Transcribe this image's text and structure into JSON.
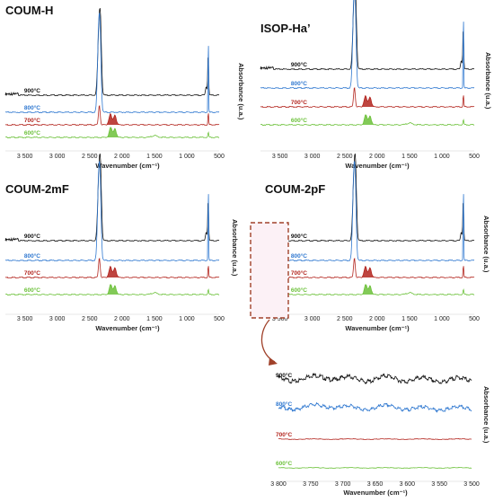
{
  "colors": {
    "900": "#111111",
    "800": "#2f78d0",
    "700": "#b3251e",
    "600": "#6cc13a",
    "callout": "#a0412a"
  },
  "chart_data": [
    {
      "type": "line",
      "title": "COUM-H",
      "xlabel": "Wavenumber (cm⁻¹)",
      "ylabel": "Absorbance (u.a.)",
      "xlim": [
        3800,
        500
      ],
      "xticks": [
        "3 500",
        "3 000",
        "2 500",
        "2 000",
        "1 500",
        "1 000",
        "500"
      ],
      "xtick_values": [
        3500,
        3000,
        2500,
        2000,
        1500,
        1000,
        500
      ],
      "series": [
        {
          "name": "900°C",
          "key": "900"
        },
        {
          "name": "800°C",
          "key": "800"
        },
        {
          "name": "700°C",
          "key": "700"
        },
        {
          "name": "600°C",
          "key": "600"
        }
      ]
    },
    {
      "type": "line",
      "title": "ISOP-Ha’",
      "xlabel": "Wavenumber (cm⁻¹)",
      "ylabel": "Absorbance (u.a.)",
      "xlim": [
        3800,
        500
      ],
      "xticks": [
        "3 500",
        "3 000",
        "2 500",
        "2 000",
        "1 500",
        "1 000",
        "500"
      ],
      "xtick_values": [
        3500,
        3000,
        2500,
        2000,
        1500,
        1000,
        500
      ],
      "series": [
        {
          "name": "900°C",
          "key": "900"
        },
        {
          "name": "800°C",
          "key": "800"
        },
        {
          "name": "700°C",
          "key": "700"
        },
        {
          "name": "600°C",
          "key": "600"
        }
      ]
    },
    {
      "type": "line",
      "title": "COUM-2mF",
      "xlabel": "Wavenumber (cm⁻¹)",
      "ylabel": "Absorbance (u.a.)",
      "xlim": [
        3800,
        500
      ],
      "xticks": [
        "3 500",
        "3 000",
        "2 500",
        "2 000",
        "1 500",
        "1 000",
        "500"
      ],
      "xtick_values": [
        3500,
        3000,
        2500,
        2000,
        1500,
        1000,
        500
      ],
      "series": [
        {
          "name": "900°C",
          "key": "900"
        },
        {
          "name": "800°C",
          "key": "800"
        },
        {
          "name": "700°C",
          "key": "700"
        },
        {
          "name": "600°C",
          "key": "600"
        }
      ]
    },
    {
      "type": "line",
      "title": "COUM-2pF",
      "xlabel": "Wavenumber (cm⁻¹)",
      "ylabel": "Absorbance (u.a.)",
      "xlim": [
        3800,
        500
      ],
      "xticks": [
        "3 500",
        "3 000",
        "2 500",
        "2 000",
        "1 500",
        "1 000",
        "500"
      ],
      "xtick_values": [
        3500,
        3000,
        2500,
        2000,
        1500,
        1000,
        500
      ],
      "series": [
        {
          "name": "900°C",
          "key": "900"
        },
        {
          "name": "800°C",
          "key": "800"
        },
        {
          "name": "700°C",
          "key": "700"
        },
        {
          "name": "600°C",
          "key": "600"
        }
      ]
    },
    {
      "type": "line",
      "title": "",
      "xlabel": "Wavenumber (cm⁻¹)",
      "ylabel": "Absorbance (u.a.)",
      "xlim": [
        3800,
        3500
      ],
      "xticks": [
        "3 800",
        "3 750",
        "3 700",
        "3 650",
        "3 600",
        "3 550",
        "3 500"
      ],
      "xtick_values": [
        3800,
        3750,
        3700,
        3650,
        3600,
        3550,
        3500
      ],
      "series": [
        {
          "name": "900°C",
          "key": "900"
        },
        {
          "name": "800°C",
          "key": "800"
        },
        {
          "name": "700°C",
          "key": "700"
        },
        {
          "name": "600°C",
          "key": "600"
        }
      ]
    }
  ]
}
